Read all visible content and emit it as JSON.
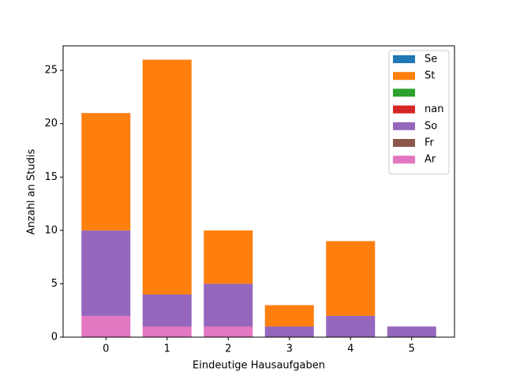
{
  "chart_data": {
    "type": "bar",
    "stacked": true,
    "x_label": "Eindeutige Hausaufgaben",
    "y_label": "Anzahl an Studis",
    "x": [
      0,
      1,
      2,
      3,
      4,
      5
    ],
    "xlim": [
      -0.7,
      5.7
    ],
    "xticks": [
      0,
      1,
      2,
      3,
      4,
      5
    ],
    "ylim": [
      0,
      27.3
    ],
    "yticks": [
      0,
      5,
      10,
      15,
      20,
      25
    ],
    "legend": "upper right",
    "series": [
      {
        "name": "Se",
        "color": "#1f77b4",
        "values": [
          0,
          0,
          0,
          0,
          0,
          0
        ]
      },
      {
        "name": "St",
        "color": "#ff7f0e",
        "values": [
          11,
          22,
          5,
          2,
          7,
          0
        ]
      },
      {
        "color": "#2ca02c",
        "values": [
          0,
          0,
          0,
          0,
          0,
          0
        ]
      },
      {
        "name": "nan",
        "color": "#d62728",
        "values": [
          0,
          0,
          0,
          0,
          0,
          0
        ]
      },
      {
        "name": "So",
        "color": "#9467bd",
        "values": [
          8,
          3,
          4,
          1,
          2,
          1
        ]
      },
      {
        "name": "Fr",
        "color": "#8c564b",
        "values": [
          0,
          0,
          0,
          0,
          0,
          0
        ]
      },
      {
        "name": "Ar",
        "color": "#e377c2",
        "values": [
          2,
          1,
          1,
          0,
          0,
          0
        ]
      }
    ]
  }
}
